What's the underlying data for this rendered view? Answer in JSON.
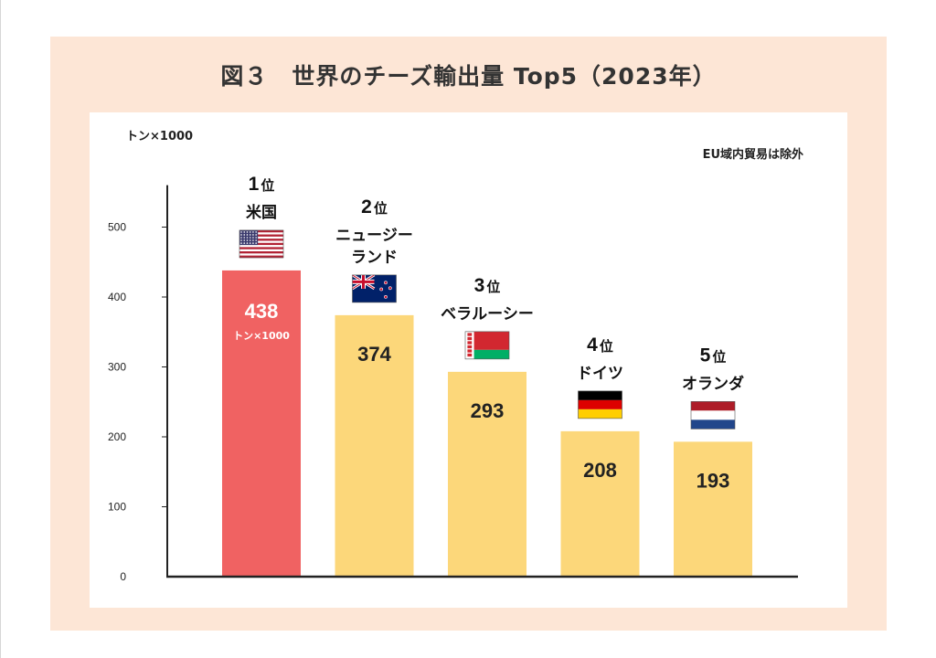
{
  "figure": {
    "title": "図３　世界のチーズ輸出量 Top5（2023年）",
    "unit_label": "トン×1000",
    "note": "EU域内貿易は除外"
  },
  "chart_data": {
    "type": "bar",
    "title": "図３　世界のチーズ輸出量 Top5（2023年）",
    "ylabel": "トン×1000",
    "xlabel": "",
    "ylim": [
      0,
      560
    ],
    "yticks": [
      0,
      100,
      200,
      300,
      400,
      500
    ],
    "grid": false,
    "annotation": "EU域内貿易は除外",
    "bar_unit_label": "トン×1000",
    "rank_suffix": "位",
    "colors": {
      "highlight": "#f06262",
      "default": "#fcd77a",
      "axis": "#222222"
    },
    "categories": [
      {
        "rank": "1",
        "name_lines": [
          "米国"
        ],
        "value": 438,
        "flag": "usa-flag-icon",
        "highlight": true
      },
      {
        "rank": "2",
        "name_lines": [
          "ニュージー",
          "ランド"
        ],
        "value": 374,
        "flag": "new-zealand-flag-icon",
        "highlight": false
      },
      {
        "rank": "3",
        "name_lines": [
          "ベラルーシー"
        ],
        "value": 293,
        "flag": "belarus-flag-icon",
        "highlight": false
      },
      {
        "rank": "4",
        "name_lines": [
          "ドイツ"
        ],
        "value": 208,
        "flag": "germany-flag-icon",
        "highlight": false
      },
      {
        "rank": "5",
        "name_lines": [
          "オランダ"
        ],
        "value": 193,
        "flag": "netherlands-flag-icon",
        "highlight": false
      }
    ]
  }
}
